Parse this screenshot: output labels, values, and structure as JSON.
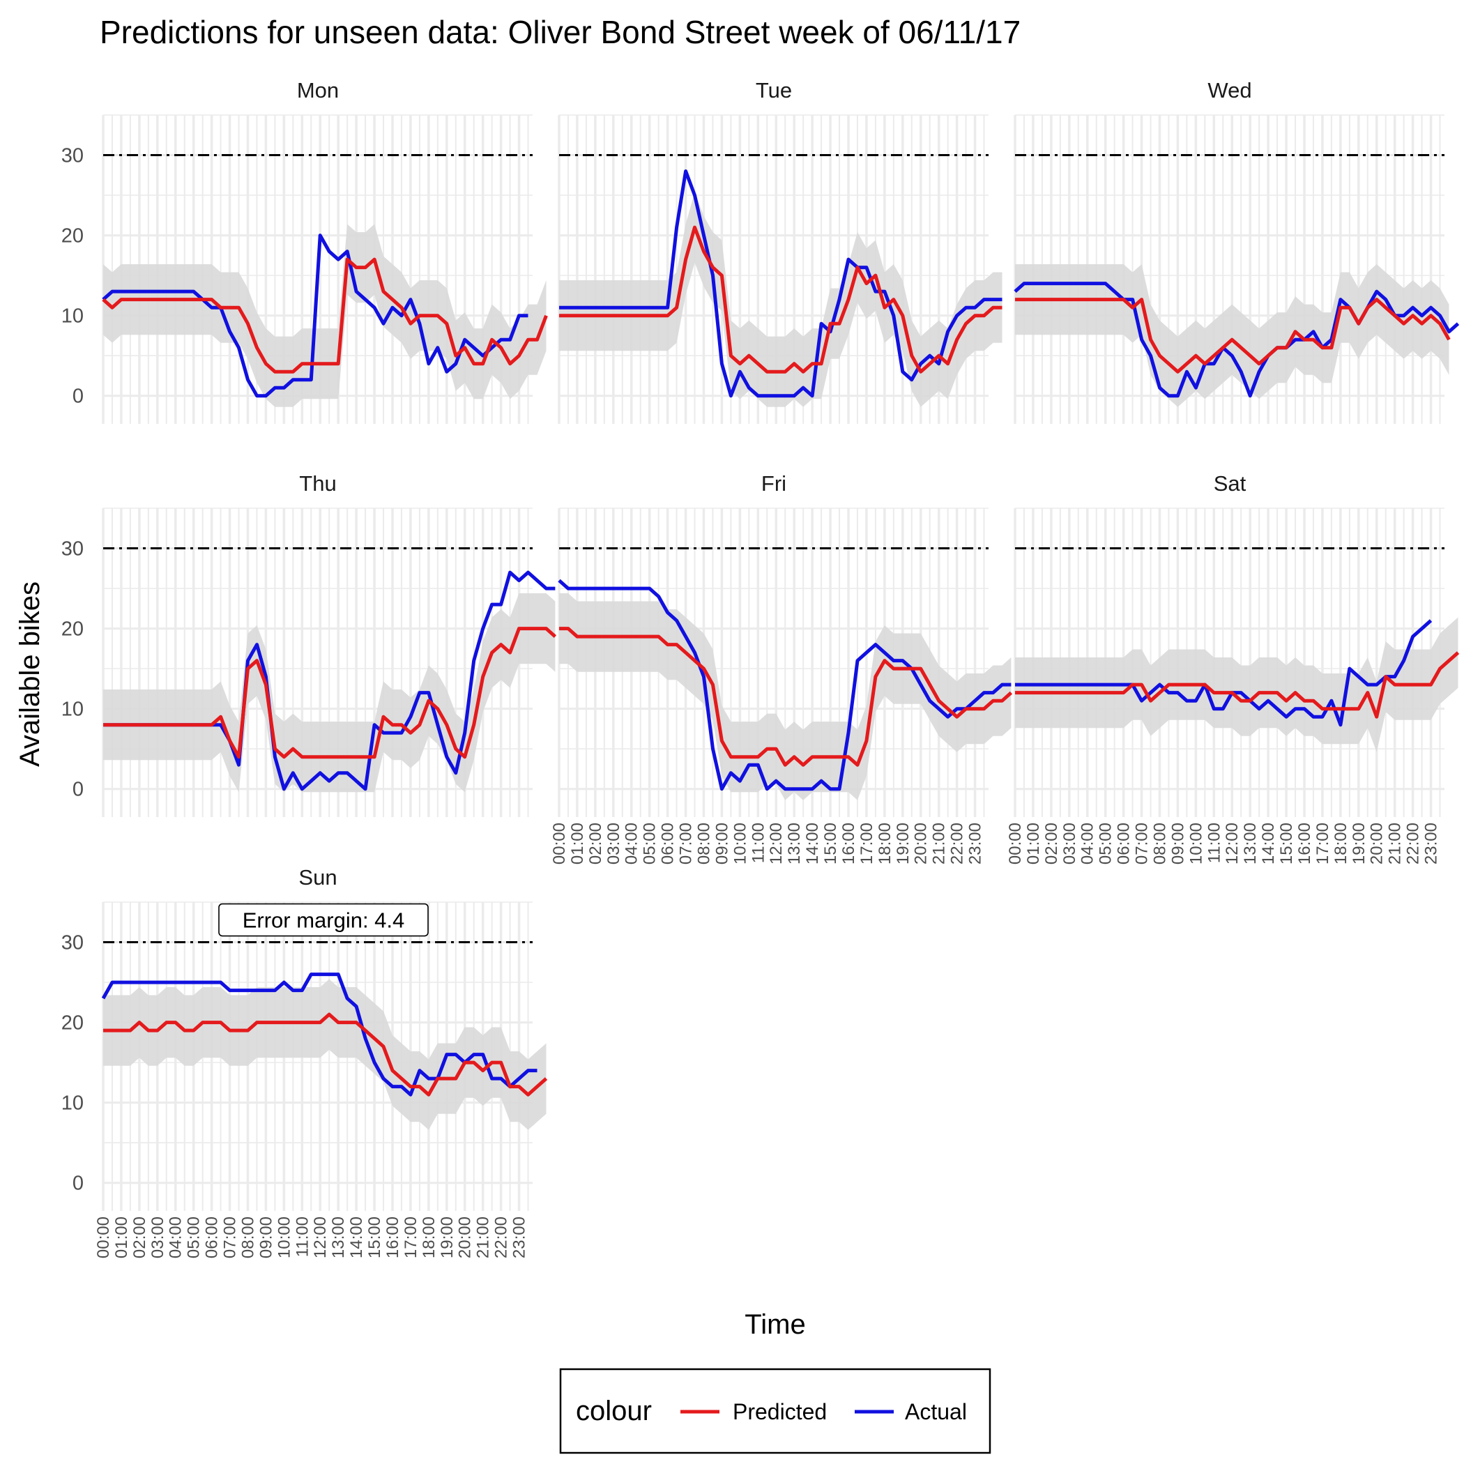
{
  "chart_data": {
    "type": "line",
    "title": "Predictions for unseen data: Oliver Bond Street week of 06/11/17",
    "xlabel": "Time",
    "ylabel": "Available bikes",
    "x_tick_labels": [
      "00:00",
      "01:00",
      "02:00",
      "03:00",
      "04:00",
      "05:00",
      "06:00",
      "07:00",
      "08:00",
      "09:00",
      "10:00",
      "11:00",
      "12:00",
      "13:00",
      "14:00",
      "15:00",
      "16:00",
      "17:00",
      "18:00",
      "19:00",
      "20:00",
      "21:00",
      "22:00",
      "23:00"
    ],
    "x_range": [
      0,
      23.75
    ],
    "x_step_hours": 0.5,
    "y_ticks": [
      0,
      10,
      20,
      30
    ],
    "ylim": [
      -3.5,
      35
    ],
    "capacity_line": 30,
    "error_margin": 4.4,
    "annotation": "Error margin: 4.4",
    "legend": {
      "title": "colour",
      "position": "bottom",
      "items": [
        "Predicted",
        "Actual"
      ]
    },
    "colors": {
      "Predicted": "#e41a1c",
      "Actual": "#1010e0",
      "band": "#d9d9d9",
      "capacity": "#000000",
      "grid": "#ebebeb"
    },
    "panels": [
      {
        "day": "Mon",
        "predicted": [
          12,
          11,
          12,
          12,
          12,
          12,
          12,
          12,
          12,
          12,
          12,
          12,
          12,
          11,
          11,
          11,
          9,
          6,
          4,
          3,
          3,
          3,
          4,
          4,
          4,
          4,
          4,
          17,
          16,
          16,
          17,
          13,
          12,
          11,
          9,
          10,
          10,
          10,
          9,
          5,
          6,
          4,
          4,
          7,
          6,
          4,
          5,
          7,
          7,
          10
        ],
        "actual": [
          12,
          13,
          13,
          13,
          13,
          13,
          13,
          13,
          13,
          13,
          13,
          12,
          11,
          11,
          8,
          6,
          2,
          0,
          0,
          1,
          1,
          2,
          2,
          2,
          20,
          18,
          17,
          18,
          13,
          12,
          11,
          9,
          11,
          10,
          12,
          9,
          4,
          6,
          3,
          4,
          7,
          6,
          5,
          6,
          7,
          7,
          10,
          10
        ]
      },
      {
        "day": "Tue",
        "predicted": [
          10,
          10,
          10,
          10,
          10,
          10,
          10,
          10,
          10,
          10,
          10,
          10,
          10,
          11,
          17,
          21,
          18,
          16,
          15,
          5,
          4,
          5,
          4,
          3,
          3,
          3,
          4,
          3,
          4,
          4,
          9,
          9,
          12,
          16,
          14,
          15,
          11,
          12,
          10,
          5,
          3,
          4,
          5,
          4,
          7,
          9,
          10,
          10,
          11,
          11
        ],
        "actual": [
          11,
          11,
          11,
          11,
          11,
          11,
          11,
          11,
          11,
          11,
          11,
          11,
          11,
          21,
          28,
          25,
          20,
          15,
          4,
          0,
          3,
          1,
          0,
          0,
          0,
          0,
          0,
          1,
          0,
          9,
          8,
          12,
          17,
          16,
          16,
          13,
          13,
          10,
          3,
          2,
          4,
          5,
          4,
          8,
          10,
          11,
          11,
          12,
          12,
          12
        ]
      },
      {
        "day": "Wed",
        "predicted": [
          12,
          12,
          12,
          12,
          12,
          12,
          12,
          12,
          12,
          12,
          12,
          12,
          12,
          11,
          12,
          7,
          5,
          4,
          3,
          4,
          5,
          4,
          5,
          6,
          7,
          6,
          5,
          4,
          5,
          6,
          6,
          8,
          7,
          7,
          6,
          6,
          11,
          11,
          9,
          11,
          12,
          11,
          10,
          9,
          10,
          9,
          10,
          9,
          7
        ],
        "actual": [
          13,
          14,
          14,
          14,
          14,
          14,
          14,
          14,
          14,
          14,
          14,
          13,
          12,
          12,
          7,
          5,
          1,
          0,
          0,
          3,
          1,
          4,
          4,
          6,
          5,
          3,
          0,
          3,
          5,
          6,
          6,
          7,
          7,
          8,
          6,
          7,
          12,
          11,
          9,
          11,
          13,
          12,
          10,
          10,
          11,
          10,
          11,
          10,
          8,
          9
        ]
      },
      {
        "day": "Thu",
        "predicted": [
          8,
          8,
          8,
          8,
          8,
          8,
          8,
          8,
          8,
          8,
          8,
          8,
          8,
          9,
          6,
          4,
          15,
          16,
          13,
          5,
          4,
          5,
          4,
          4,
          4,
          4,
          4,
          4,
          4,
          4,
          4,
          9,
          8,
          8,
          7,
          8,
          11,
          10,
          8,
          5,
          4,
          8,
          14,
          17,
          18,
          17,
          20,
          20,
          20,
          20,
          19
        ],
        "actual": [
          8,
          8,
          8,
          8,
          8,
          8,
          8,
          8,
          8,
          8,
          8,
          8,
          8,
          8,
          6,
          3,
          16,
          18,
          14,
          4,
          0,
          2,
          0,
          1,
          2,
          1,
          2,
          2,
          1,
          0,
          8,
          7,
          7,
          7,
          9,
          12,
          12,
          8,
          4,
          2,
          7,
          16,
          20,
          23,
          23,
          27,
          26,
          27,
          26,
          25,
          25
        ]
      },
      {
        "day": "Fri",
        "predicted": [
          20,
          20,
          19,
          19,
          19,
          19,
          19,
          19,
          19,
          19,
          19,
          19,
          18,
          18,
          17,
          16,
          15,
          13,
          6,
          4,
          4,
          4,
          4,
          5,
          5,
          3,
          4,
          3,
          4,
          4,
          4,
          4,
          4,
          3,
          6,
          14,
          16,
          15,
          15,
          15,
          15,
          13,
          11,
          10,
          9,
          10,
          10,
          10,
          11,
          11,
          12
        ],
        "actual": [
          26,
          25,
          25,
          25,
          25,
          25,
          25,
          25,
          25,
          25,
          25,
          24,
          22,
          21,
          19,
          17,
          14,
          5,
          0,
          2,
          1,
          3,
          3,
          0,
          1,
          0,
          0,
          0,
          0,
          1,
          0,
          0,
          7,
          16,
          17,
          18,
          17,
          16,
          16,
          15,
          13,
          11,
          10,
          9,
          10,
          10,
          11,
          12,
          12,
          13,
          13
        ]
      },
      {
        "day": "Sat",
        "predicted": [
          12,
          12,
          12,
          12,
          12,
          12,
          12,
          12,
          12,
          12,
          12,
          12,
          12,
          13,
          13,
          11,
          12,
          13,
          13,
          13,
          13,
          13,
          12,
          12,
          12,
          11,
          11,
          12,
          12,
          12,
          11,
          12,
          11,
          11,
          10,
          10,
          10,
          10,
          10,
          12,
          9,
          14,
          13,
          13,
          13,
          13,
          13,
          15,
          16,
          17
        ],
        "actual": [
          13,
          13,
          13,
          13,
          13,
          13,
          13,
          13,
          13,
          13,
          13,
          13,
          13,
          13,
          11,
          12,
          13,
          12,
          12,
          11,
          11,
          13,
          10,
          10,
          12,
          12,
          11,
          10,
          11,
          10,
          9,
          10,
          10,
          9,
          9,
          11,
          8,
          15,
          14,
          13,
          13,
          14,
          14,
          16,
          19,
          20,
          21
        ]
      },
      {
        "day": "Sun",
        "predicted": [
          19,
          19,
          19,
          19,
          20,
          19,
          19,
          20,
          20,
          19,
          19,
          20,
          20,
          20,
          19,
          19,
          19,
          20,
          20,
          20,
          20,
          20,
          20,
          20,
          20,
          21,
          20,
          20,
          20,
          19,
          18,
          17,
          14,
          13,
          12,
          12,
          11,
          13,
          13,
          13,
          15,
          15,
          14,
          15,
          15,
          12,
          12,
          11,
          12,
          13
        ],
        "actual": [
          23,
          25,
          25,
          25,
          25,
          25,
          25,
          25,
          25,
          25,
          25,
          25,
          25,
          25,
          24,
          24,
          24,
          24,
          24,
          24,
          25,
          24,
          24,
          26,
          26,
          26,
          26,
          23,
          22,
          18,
          15,
          13,
          12,
          12,
          11,
          14,
          13,
          13,
          16,
          16,
          15,
          16,
          16,
          13,
          13,
          12,
          13,
          14,
          14
        ]
      }
    ]
  }
}
